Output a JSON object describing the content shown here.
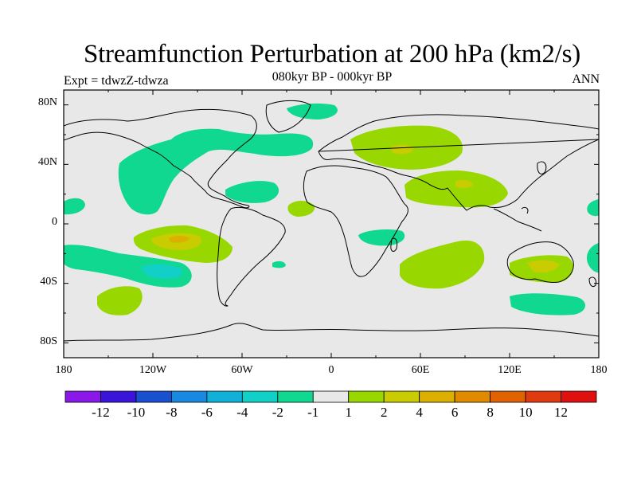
{
  "title": "Streamfunction Perturbation at 200 hPa (km2/s)",
  "subtitle_center": "080kyr BP - 000kyr BP",
  "subtitle_left": "Expt = tdwzZ-tdwza",
  "subtitle_right": "ANN",
  "lat_labels": [
    "80N",
    "40N",
    "0",
    "40S",
    "80S"
  ],
  "lat_values": [
    80,
    40,
    0,
    -40,
    -80
  ],
  "lon_labels": [
    "180",
    "120W",
    "60W",
    "0",
    "60E",
    "120E",
    "180"
  ],
  "lon_values": [
    -180,
    -120,
    -60,
    0,
    60,
    120,
    180
  ],
  "colorbar": {
    "colors": [
      "#8a18e8",
      "#3a14d8",
      "#1850d0",
      "#1888e0",
      "#10b0d8",
      "#10d0c8",
      "#10d890",
      "#e8e8e8",
      "#98d800",
      "#c8cc00",
      "#dcb000",
      "#e08a00",
      "#e06200",
      "#e03a10",
      "#e01010"
    ],
    "labels": [
      "-12",
      "-10",
      "-8",
      "-6",
      "-4",
      "-2",
      "-1",
      "1",
      "2",
      "4",
      "6",
      "8",
      "10",
      "12"
    ]
  },
  "colors": {
    "background": "#e8e8e8",
    "neg_weak": "#10d890",
    "neg_mid": "#10d0c8",
    "pos_weak": "#98d800",
    "pos_mid": "#c8cc00",
    "pos_strong": "#dcb000"
  }
}
